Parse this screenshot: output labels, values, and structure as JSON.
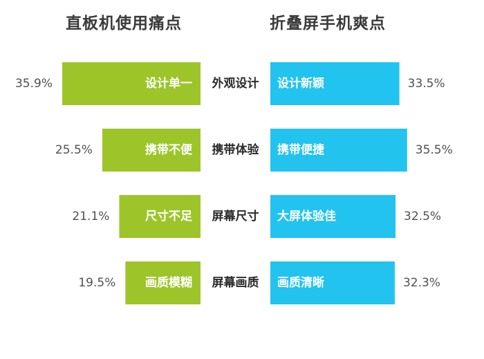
{
  "titles": {
    "left": "直板机使用痛点",
    "right": "折叠屏手机爽点"
  },
  "colors": {
    "left_bar": "#9dc52a",
    "right_bar": "#22c3ee"
  },
  "chart_data": {
    "type": "bar",
    "orientation": "horizontal-diverging",
    "categories": [
      "外观设计",
      "携带体验",
      "屏幕尺寸",
      "屏幕画质"
    ],
    "series": [
      {
        "name": "直板机使用痛点",
        "values": [
          35.9,
          25.5,
          21.1,
          19.5
        ],
        "labels": [
          "35.9%",
          "25.5%",
          "21.1%",
          "19.5%"
        ],
        "bar_text": [
          "设计单一",
          "携带不便",
          "尺寸不足",
          "画质模糊"
        ]
      },
      {
        "name": "折叠屏手机爽点",
        "values": [
          33.5,
          35.5,
          32.5,
          32.3
        ],
        "labels": [
          "33.5%",
          "35.5%",
          "32.5%",
          "32.3%"
        ],
        "bar_text": [
          "设计新颖",
          "携带便捷",
          "大屏体验佳",
          "画质清晰"
        ]
      }
    ]
  }
}
